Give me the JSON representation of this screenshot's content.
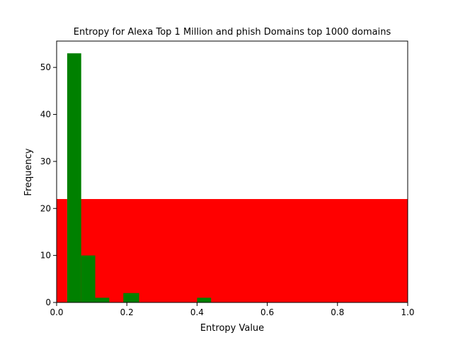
{
  "chart_data": {
    "type": "bar",
    "title": "Entropy for Alexa Top 1 Million and phish Domains top 1000 domains",
    "xlabel": "Entropy Value",
    "ylabel": "Frequency",
    "xlim": [
      0.0,
      1.0
    ],
    "ylim": [
      0,
      55.6
    ],
    "xticks": [
      "0.0",
      "0.2",
      "0.4",
      "0.6",
      "0.8",
      "1.0"
    ],
    "yticks": [
      "0",
      "10",
      "20",
      "30",
      "40",
      "50"
    ],
    "xtick_values": [
      0.0,
      0.2,
      0.4,
      0.6,
      0.8,
      1.0
    ],
    "ytick_values": [
      0,
      10,
      20,
      30,
      40,
      50
    ],
    "grid": false,
    "series": [
      {
        "color": "#ff0000",
        "bins": [
          {
            "x0": 0.0,
            "x1": 0.03,
            "value": 22
          },
          {
            "x0": 0.03,
            "x1": 1.0,
            "value": 22
          }
        ]
      },
      {
        "color": "#008000",
        "bins": [
          {
            "x0": 0.03,
            "x1": 0.07,
            "value": 53
          },
          {
            "x0": 0.07,
            "x1": 0.11,
            "value": 10
          },
          {
            "x0": 0.11,
            "x1": 0.15,
            "value": 1
          },
          {
            "x0": 0.19,
            "x1": 0.235,
            "value": 2
          },
          {
            "x0": 0.4,
            "x1": 0.44,
            "value": 1
          }
        ]
      }
    ]
  }
}
